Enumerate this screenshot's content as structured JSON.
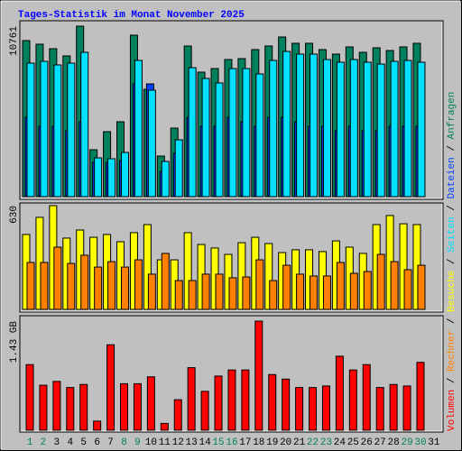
{
  "chart_data": {
    "type": "bar",
    "title": "Tages-Statistik im Monat November 2025",
    "categories": [
      "1",
      "2",
      "3",
      "4",
      "5",
      "6",
      "7",
      "8",
      "9",
      "10",
      "11",
      "12",
      "13",
      "14",
      "15",
      "16",
      "17",
      "18",
      "19",
      "20",
      "21",
      "22",
      "23",
      "24",
      "25",
      "26",
      "27",
      "28",
      "29",
      "30",
      "31"
    ],
    "category_colors": [
      "#00805c",
      "#00805c",
      "#000000",
      "#000000",
      "#000000",
      "#000000",
      "#000000",
      "#00805c",
      "#00805c",
      "#000000",
      "#000000",
      "#000000",
      "#000000",
      "#000000",
      "#00805c",
      "#00805c",
      "#000000",
      "#000000",
      "#000000",
      "#000000",
      "#000000",
      "#00805c",
      "#00805c",
      "#000000",
      "#000000",
      "#000000",
      "#000000",
      "#000000",
      "#00805c",
      "#00805c",
      "#000000"
    ],
    "legend_separator": " / ",
    "panels": [
      {
        "ylim": [
          0,
          10761
        ],
        "yticks": [
          10761
        ],
        "series": [
          {
            "name": "Anfragen",
            "color": "#00805c",
            "offset": 0,
            "values": [
              9851,
              9623,
              9338,
              8883,
              10761,
              2961,
              4100,
              4726,
              10192,
              6776,
              2562,
              4327,
              9509,
              7858,
              8085,
              8655,
              8712,
              9281,
              9509,
              10078,
              9680,
              9680,
              9281,
              8997,
              9452,
              9110,
              9395,
              9224,
              9452,
              9680,
              null
            ]
          },
          {
            "name": "Dateien",
            "color": "#0040ff",
            "offset": 3,
            "values": [
              5011,
              4441,
              4441,
              4157,
              4726,
              2164,
              2164,
              2278,
              7117,
              7117,
              1594,
              2733,
              5011,
              4441,
              4441,
              5011,
              4726,
              4441,
              5011,
              5011,
              4726,
              4441,
              4441,
              4157,
              4441,
              4157,
              4157,
              4441,
              4441,
              4441,
              null
            ]
          },
          {
            "name": "Seiten",
            "color": "#00e0ff",
            "offset": 5,
            "values": [
              8427,
              8541,
              8313,
              8427,
              9110,
              2448,
              2391,
              2790,
              8598,
              6719,
              2221,
              3587,
              8142,
              7459,
              7174,
              8085,
              8085,
              7744,
              8598,
              9167,
              8997,
              8997,
              8655,
              8484,
              8655,
              8484,
              8370,
              8541,
              8598,
              8484,
              null
            ]
          }
        ]
      },
      {
        "ylim": [
          0,
          630
        ],
        "yticks": [
          630
        ],
        "series": [
          {
            "name": "Besuche",
            "color": "#ffff00",
            "offset": 0,
            "values": [
              455,
              559,
              630,
              433,
              482,
              438,
              455,
              411,
              466,
              515,
              301,
              301,
              466,
              394,
              373,
              334,
              405,
              438,
              400,
              345,
              362,
              362,
              351,
              416,
              378,
              340,
              515,
              570,
              520,
              515,
              null
            ]
          },
          {
            "name": "Rechner",
            "color": "#ff8000",
            "offset": 5,
            "values": [
              285,
              285,
              378,
              279,
              329,
              257,
              290,
              257,
              301,
              214,
              340,
              175,
              175,
              214,
              214,
              192,
              197,
              301,
              175,
              268,
              214,
              203,
              203,
              285,
              219,
              230,
              334,
              290,
              241,
              268,
              null
            ]
          }
        ]
      },
      {
        "ylim": [
          0,
          1.43
        ],
        "yticks": [
          {
            "value": 1.43,
            "label": "1.43 GB"
          }
        ],
        "series": [
          {
            "name": "Volumen",
            "color": "#ff0000",
            "offset": 4,
            "values": [
              0.86,
              0.59,
              0.64,
              0.56,
              0.6,
              0.12,
              1.12,
              0.61,
              0.61,
              0.7,
              0.09,
              0.4,
              0.82,
              0.51,
              0.71,
              0.79,
              0.79,
              1.43,
              0.73,
              0.67,
              0.56,
              0.56,
              0.58,
              0.97,
              0.79,
              0.86,
              0.56,
              0.6,
              0.58,
              0.89,
              null
            ]
          }
        ]
      }
    ]
  }
}
